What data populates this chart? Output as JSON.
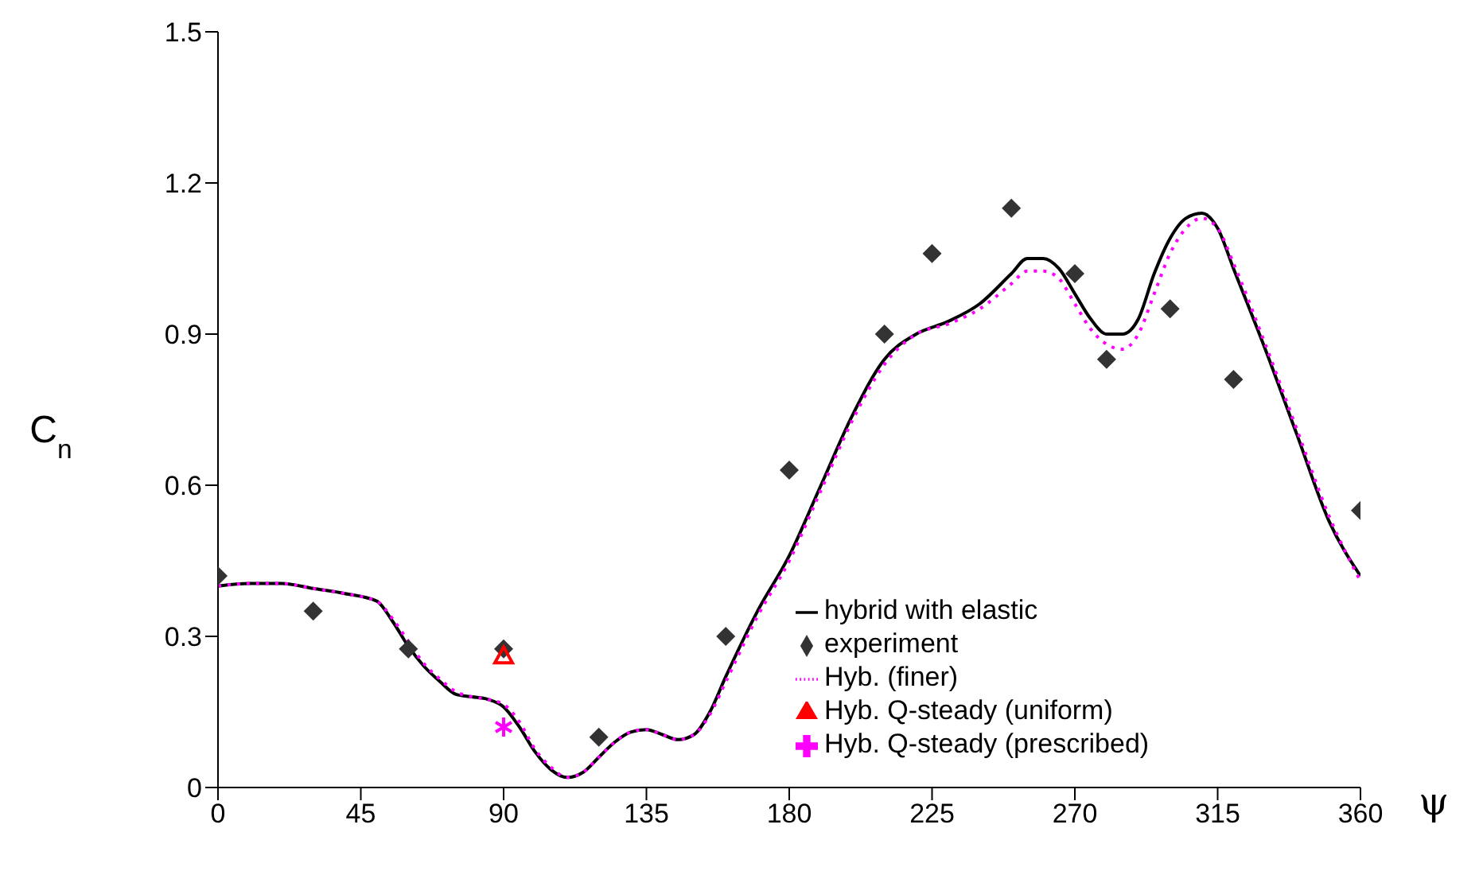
{
  "chart_data": {
    "type": "line",
    "xlabel": "ψ",
    "ylabel": "C$_{n}$",
    "xlim": [
      0,
      360
    ],
    "xticks": [
      0,
      45,
      90,
      135,
      180,
      225,
      270,
      315,
      360
    ],
    "ylim": [
      0,
      1.5
    ],
    "yticks": [
      0,
      0.3,
      0.6,
      0.9,
      1.2,
      1.5
    ],
    "grid": false,
    "legend": "bottom right",
    "series": [
      {
        "name": "hybrid with elastic",
        "color": "#000000",
        "line_style": "solid",
        "marker": "none",
        "x": [
          0,
          10,
          20,
          30,
          40,
          50,
          55,
          60,
          65,
          70,
          75,
          80,
          85,
          90,
          95,
          100,
          105,
          110,
          115,
          120,
          125,
          130,
          135,
          140,
          145,
          150,
          155,
          160,
          170,
          180,
          190,
          200,
          210,
          220,
          230,
          240,
          250,
          255,
          260,
          265,
          270,
          275,
          280,
          285,
          290,
          295,
          300,
          305,
          310,
          315,
          320,
          330,
          340,
          350,
          360
        ],
        "values": [
          0.4,
          0.405,
          0.405,
          0.395,
          0.385,
          0.37,
          0.33,
          0.28,
          0.24,
          0.21,
          0.185,
          0.18,
          0.175,
          0.16,
          0.12,
          0.07,
          0.035,
          0.02,
          0.03,
          0.06,
          0.09,
          0.11,
          0.115,
          0.105,
          0.095,
          0.105,
          0.15,
          0.22,
          0.35,
          0.46,
          0.6,
          0.74,
          0.85,
          0.9,
          0.925,
          0.96,
          1.02,
          1.05,
          1.05,
          1.03,
          0.98,
          0.93,
          0.9,
          0.9,
          0.93,
          1.02,
          1.09,
          1.13,
          1.14,
          1.11,
          1.03,
          0.87,
          0.7,
          0.53,
          0.42
        ]
      },
      {
        "name": "experiment",
        "type": "scatter",
        "color": "#333333",
        "marker": "diamond",
        "x": [
          0,
          30,
          60,
          90,
          120,
          160,
          180,
          210,
          225,
          250,
          270,
          280,
          300,
          320,
          360
        ],
        "values": [
          0.42,
          0.35,
          0.275,
          0.275,
          0.1,
          0.3,
          0.63,
          0.9,
          1.06,
          1.15,
          1.02,
          0.85,
          0.95,
          0.81,
          0.55
        ]
      },
      {
        "name": "Hyb. (finer)",
        "color": "#ff00ff",
        "line_style": "dotted",
        "marker": "none",
        "x": [
          0,
          10,
          20,
          30,
          40,
          50,
          55,
          60,
          65,
          70,
          75,
          80,
          85,
          90,
          95,
          100,
          105,
          110,
          115,
          120,
          125,
          130,
          135,
          140,
          145,
          150,
          155,
          160,
          170,
          180,
          190,
          200,
          210,
          220,
          230,
          240,
          250,
          255,
          260,
          265,
          270,
          275,
          280,
          285,
          290,
          295,
          300,
          305,
          310,
          315,
          320,
          330,
          340,
          350,
          360
        ],
        "values": [
          0.4,
          0.405,
          0.405,
          0.395,
          0.385,
          0.37,
          0.335,
          0.29,
          0.245,
          0.215,
          0.19,
          0.18,
          0.175,
          0.165,
          0.13,
          0.075,
          0.04,
          0.02,
          0.03,
          0.06,
          0.09,
          0.11,
          0.115,
          0.105,
          0.095,
          0.105,
          0.145,
          0.21,
          0.34,
          0.45,
          0.59,
          0.73,
          0.84,
          0.9,
          0.92,
          0.95,
          1.0,
          1.025,
          1.025,
          1.01,
          0.96,
          0.91,
          0.88,
          0.87,
          0.9,
          0.98,
          1.06,
          1.11,
          1.13,
          1.11,
          1.04,
          0.88,
          0.71,
          0.54,
          0.41
        ]
      },
      {
        "name": "Hyb. Q-steady (uniform)",
        "type": "scatter",
        "color": "#ff0000",
        "marker": "triangle",
        "x": [
          90
        ],
        "values": [
          0.26
        ]
      },
      {
        "name": "Hyb. Q-steady (prescribed)",
        "type": "scatter",
        "color": "#ff00ff",
        "marker": "cross",
        "x": [
          90
        ],
        "values": [
          0.12
        ]
      }
    ]
  }
}
